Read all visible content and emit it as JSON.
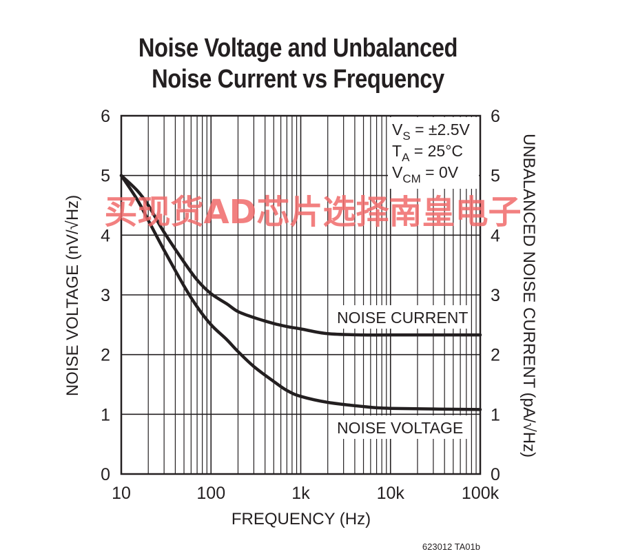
{
  "chart_data": {
    "type": "line",
    "title_line1": "Noise Voltage and Unbalanced",
    "title_line2": "Noise Current vs Frequency",
    "xlabel": "FREQUENCY (Hz)",
    "ylabel": "NOISE VOLTAGE (nV/√Hz)",
    "y2label": "UNBALANCED NOISE CURRENT (pA/√Hz)",
    "x_scale": "log",
    "xlim": [
      10,
      100000
    ],
    "ylim": [
      0,
      6
    ],
    "y2lim": [
      0,
      6
    ],
    "grid": true,
    "x_ticks": [
      10,
      100,
      1000,
      10000,
      100000
    ],
    "x_tick_labels": [
      "10",
      "100",
      "1k",
      "10k",
      "100k"
    ],
    "y_ticks": [
      0,
      1,
      2,
      3,
      4,
      5,
      6
    ],
    "y_tick_labels": [
      "0",
      "1",
      "2",
      "3",
      "4",
      "5",
      "6"
    ],
    "y2_tick_labels": [
      "0",
      "1",
      "2",
      "3",
      "4",
      "5",
      "6"
    ],
    "conditions": [
      {
        "main": "V",
        "sub": "S",
        "rest": " = ±2.5V"
      },
      {
        "main": "T",
        "sub": "A",
        "rest": " = 25°C"
      },
      {
        "main": "V",
        "sub": "CM",
        "rest": " = 0V"
      }
    ],
    "series": [
      {
        "name": "NOISE CURRENT",
        "axis": "right",
        "x": [
          10,
          15,
          20,
          30,
          50,
          70,
          100,
          150,
          200,
          300,
          500,
          700,
          1000,
          2000,
          5000,
          10000,
          100000
        ],
        "y": [
          5.0,
          4.75,
          4.5,
          4.05,
          3.55,
          3.25,
          3.02,
          2.85,
          2.72,
          2.62,
          2.52,
          2.47,
          2.43,
          2.35,
          2.33,
          2.33,
          2.33
        ]
      },
      {
        "name": "NOISE VOLTAGE",
        "axis": "left",
        "x": [
          10,
          15,
          20,
          30,
          50,
          70,
          100,
          150,
          200,
          300,
          500,
          700,
          1000,
          2000,
          5000,
          10000,
          100000
        ],
        "y": [
          5.0,
          4.6,
          4.25,
          3.75,
          3.15,
          2.8,
          2.5,
          2.25,
          2.05,
          1.8,
          1.55,
          1.4,
          1.3,
          1.2,
          1.13,
          1.1,
          1.08
        ]
      }
    ],
    "figure_code": "623012 TA01b"
  },
  "watermark": "买现货AD芯片选择南皇电子"
}
